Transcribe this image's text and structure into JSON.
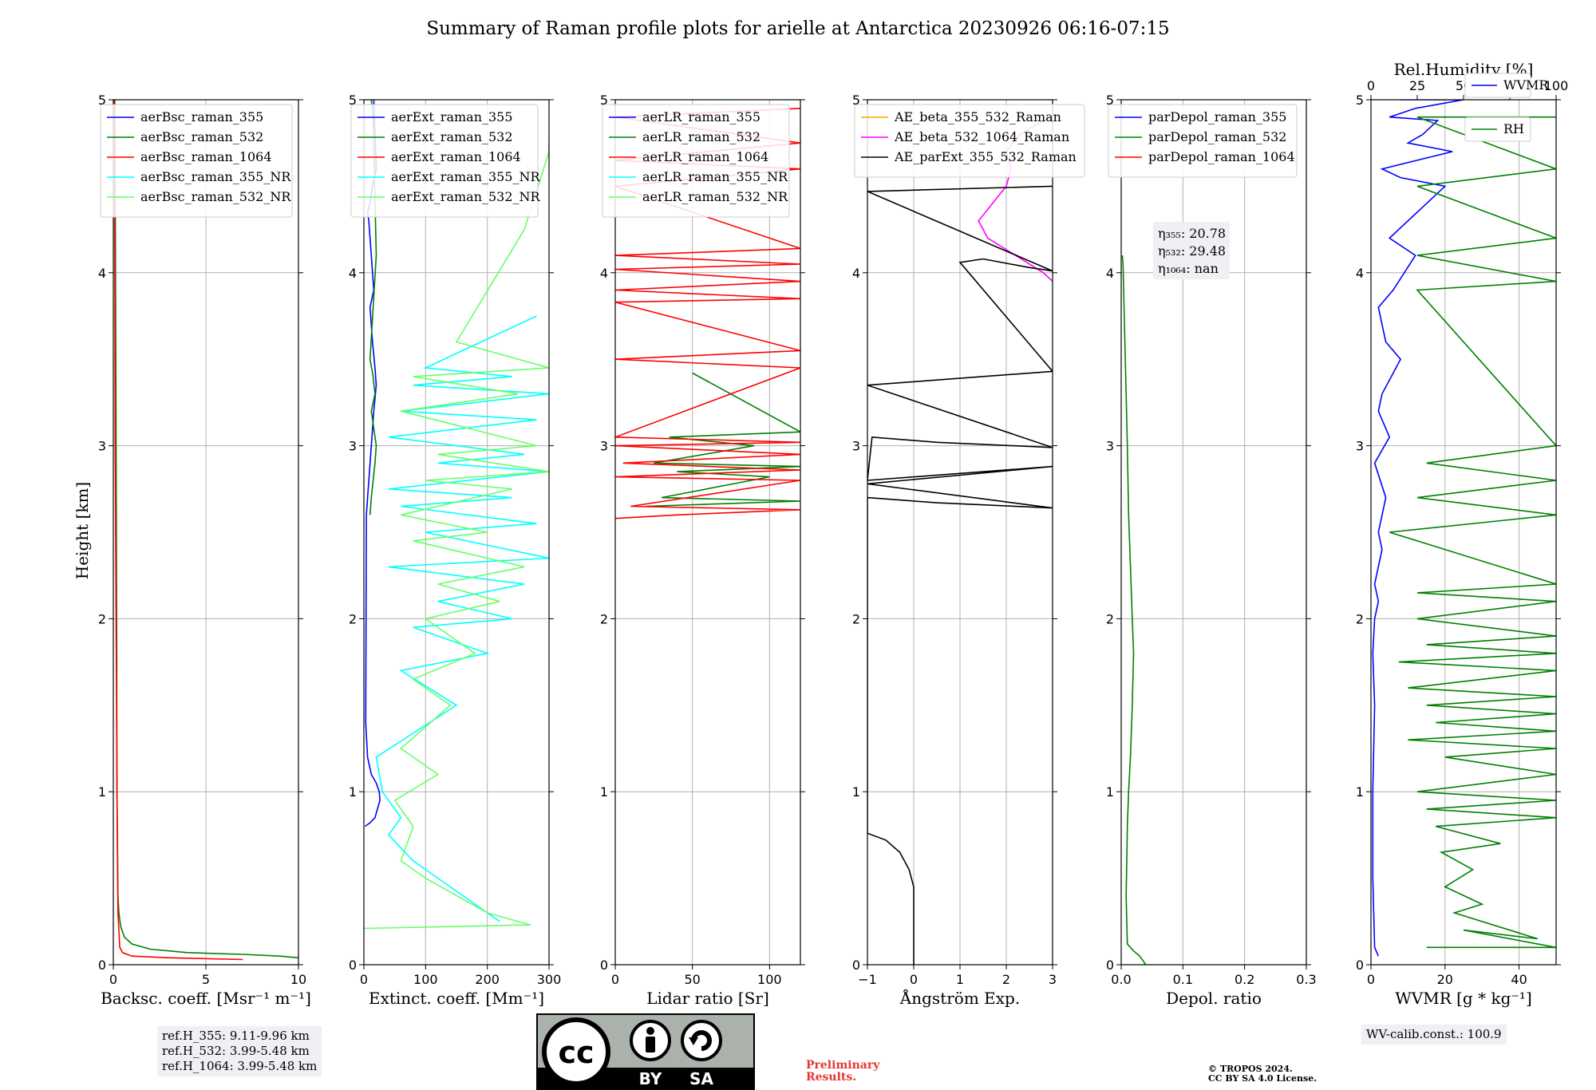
{
  "title": "Summary of Raman profile plots for arielle at Antarctica 20230926 06:16-07:15",
  "ylabel": "Height [km]",
  "colors": {
    "blue": "#0000ff",
    "green": "#008000",
    "red": "#ff0000",
    "cyan": "#00ffff",
    "lightgreen": "#66ff66",
    "orange": "#ffa500",
    "magenta": "#ff00ff",
    "black": "#000000"
  },
  "chart_data": [
    {
      "type": "line",
      "xlabel": "Backsc. coeff. [Msr⁻¹ m⁻¹]",
      "xlim": [
        0,
        10
      ],
      "ylim": [
        0,
        5
      ],
      "xticks": [
        0,
        5,
        10
      ],
      "yticks": [
        0,
        1,
        2,
        3,
        4,
        5
      ],
      "legend": [
        "aerBsc_raman_355",
        "aerBsc_raman_532",
        "aerBsc_raman_1064",
        "aerBsc_raman_355_NR",
        "aerBsc_raman_532_NR"
      ],
      "legend_colors": [
        "blue",
        "green",
        "red",
        "cyan",
        "lightgreen"
      ],
      "series": [
        {
          "name": "aerBsc_raman_532",
          "color": "green",
          "x": [
            10,
            9,
            7,
            4,
            2,
            1,
            0.6,
            0.4,
            0.3,
            0.25,
            0.2,
            0.18,
            0.15,
            0.12,
            0.1,
            0.08
          ],
          "y": [
            0.04,
            0.05,
            0.06,
            0.07,
            0.09,
            0.12,
            0.16,
            0.22,
            0.3,
            0.4,
            1,
            2,
            3,
            4,
            4.6,
            5
          ]
        },
        {
          "name": "aerBsc_raman_1064",
          "color": "red",
          "x": [
            7,
            3,
            1,
            0.5,
            0.35,
            0.25,
            0.2,
            0.15,
            0.1,
            0.08,
            0.05
          ],
          "y": [
            0.03,
            0.04,
            0.05,
            0.07,
            0.1,
            0.3,
            1,
            2,
            3,
            4,
            5
          ]
        }
      ]
    },
    {
      "type": "line",
      "xlabel": "Extinct. coeff. [Mm⁻¹]",
      "xlim": [
        0,
        300
      ],
      "ylim": [
        0,
        5
      ],
      "xticks": [
        0,
        100,
        200,
        300
      ],
      "yticks": [
        0,
        1,
        2,
        3,
        4,
        5
      ],
      "legend": [
        "aerExt_raman_355",
        "aerExt_raman_532",
        "aerExt_raman_1064",
        "aerExt_raman_355_NR",
        "aerExt_raman_532_NR"
      ],
      "legend_colors": [
        "blue",
        "green",
        "red",
        "cyan",
        "lightgreen"
      ],
      "series": [
        {
          "name": "aerExt_raman_355",
          "color": "blue",
          "x": [
            2,
            10,
            18,
            22,
            26,
            25,
            20,
            12,
            6,
            3,
            4,
            8,
            12,
            16,
            20,
            18,
            14,
            10,
            16,
            14,
            12,
            10,
            8,
            6,
            10,
            14,
            20,
            18,
            16
          ],
          "y": [
            0.8,
            0.82,
            0.85,
            0.9,
            0.95,
            1.0,
            1.05,
            1.1,
            1.2,
            1.4,
            2.6,
            2.8,
            3.0,
            3.2,
            3.35,
            3.45,
            3.6,
            3.8,
            3.9,
            4.0,
            4.1,
            4.2,
            4.3,
            4.35,
            4.4,
            4.5,
            4.6,
            4.8,
            5.0
          ]
        },
        {
          "name": "aerExt_raman_532",
          "color": "green",
          "x": [
            10,
            12,
            15,
            18,
            20,
            16,
            12,
            18,
            15,
            10,
            20,
            15,
            12
          ],
          "y": [
            2.6,
            2.7,
            2.8,
            2.9,
            3.0,
            3.1,
            3.2,
            3.3,
            3.4,
            3.5,
            4.1,
            4.9,
            5.0
          ]
        },
        {
          "name": "aerExt_raman_355_NR",
          "color": "cyan",
          "x": [
            220,
            180,
            120,
            80,
            40,
            60,
            30,
            20,
            150,
            60,
            200,
            80,
            240,
            120,
            260,
            40,
            300,
            100,
            280,
            60,
            240,
            40,
            300,
            120,
            260,
            40,
            280,
            60,
            300,
            80,
            240,
            100,
            280
          ],
          "y": [
            0.25,
            0.35,
            0.5,
            0.6,
            0.75,
            0.85,
            1.0,
            1.2,
            1.5,
            1.7,
            1.8,
            1.95,
            2.0,
            2.1,
            2.2,
            2.3,
            2.35,
            2.5,
            2.55,
            2.65,
            2.7,
            2.75,
            2.85,
            2.9,
            2.95,
            3.05,
            3.15,
            3.2,
            3.3,
            3.35,
            3.4,
            3.45,
            3.75
          ]
        },
        {
          "name": "aerExt_raman_532_NR",
          "color": "lightgreen",
          "x": [
            0,
            270,
            200,
            150,
            100,
            60,
            80,
            50,
            120,
            60,
            140,
            80,
            180,
            100,
            220,
            120,
            260,
            80,
            200,
            60,
            240,
            100,
            300,
            120,
            280,
            60,
            250,
            80,
            300,
            150,
            260,
            300,
            300
          ],
          "y": [
            0.21,
            0.23,
            0.3,
            0.4,
            0.5,
            0.6,
            0.8,
            0.95,
            1.1,
            1.25,
            1.5,
            1.65,
            1.8,
            2.0,
            2.1,
            2.2,
            2.3,
            2.45,
            2.5,
            2.6,
            2.75,
            2.8,
            2.85,
            2.95,
            3.0,
            3.2,
            3.3,
            3.4,
            3.45,
            3.6,
            4.25,
            4.7,
            4.75
          ]
        }
      ]
    },
    {
      "type": "line",
      "xlabel": "Lidar ratio [Sr]",
      "xlim": [
        0,
        120
      ],
      "ylim": [
        0,
        5
      ],
      "xticks": [
        0,
        50,
        100
      ],
      "yticks": [
        0,
        1,
        2,
        3,
        4,
        5
      ],
      "legend": [
        "aerLR_raman_355",
        "aerLR_raman_532",
        "aerLR_raman_1064",
        "aerLR_raman_355_NR",
        "aerLR_raman_532_NR"
      ],
      "legend_colors": [
        "blue",
        "green",
        "red",
        "cyan",
        "lightgreen"
      ],
      "series": [
        {
          "name": "aerLR_raman_532",
          "color": "green",
          "x": [
            20,
            120,
            30,
            100,
            40,
            120,
            25,
            90,
            35,
            120,
            50
          ],
          "y": [
            2.65,
            2.68,
            2.7,
            2.82,
            2.85,
            2.88,
            2.9,
            3.0,
            3.05,
            3.08,
            3.42
          ]
        },
        {
          "name": "aerLR_raman_1064",
          "color": "red",
          "x": [
            0,
            40,
            120,
            10,
            120,
            0,
            120,
            5,
            120,
            0,
            120,
            0,
            120,
            0,
            120,
            0,
            120,
            0,
            120,
            0,
            120,
            0,
            120,
            0,
            120,
            0,
            120,
            0,
            120
          ],
          "y": [
            2.58,
            2.6,
            2.63,
            2.65,
            2.8,
            2.82,
            2.86,
            2.9,
            2.95,
            3.0,
            3.02,
            3.05,
            3.45,
            3.5,
            3.55,
            3.83,
            3.85,
            3.9,
            3.95,
            4.02,
            4.05,
            4.1,
            4.14,
            4.5,
            4.6,
            4.65,
            4.75,
            4.9,
            4.95
          ]
        }
      ]
    },
    {
      "type": "line",
      "xlabel": "Ångström Exp.",
      "xlim": [
        -1,
        3
      ],
      "ylim": [
        0,
        5
      ],
      "xticks": [
        -1,
        0,
        1,
        2,
        3
      ],
      "yticks": [
        0,
        1,
        2,
        3,
        4,
        5
      ],
      "legend": [
        "AE_beta_355_532_Raman",
        "AE_beta_532_1064_Raman",
        "AE_parExt_355_532_Raman"
      ],
      "legend_colors": [
        "orange",
        "magenta",
        "black"
      ],
      "series": [
        {
          "name": "AE_beta_532_1064_Raman",
          "color": "magenta",
          "x": [
            3,
            2.8,
            2.2,
            1.6,
            1.4,
            1.7,
            2.0,
            2.1,
            2.0,
            2.3,
            2.6,
            3.0
          ],
          "y": [
            3.95,
            4.0,
            4.1,
            4.2,
            4.3,
            4.4,
            4.5,
            4.6,
            4.7,
            4.8,
            4.85,
            4.9
          ]
        },
        {
          "name": "AE_parExt_355_532_Raman",
          "color": "black",
          "x": [
            0,
            0,
            -0.05,
            -0.1,
            -0.3,
            -0.6,
            -1,
            -1,
            0.5,
            3,
            -1,
            1,
            3,
            -1,
            -0.9,
            0.5,
            3,
            -1,
            0.5,
            3,
            1,
            1.5,
            2.5,
            3,
            -1,
            3
          ],
          "y": [
            0,
            0.45,
            0.5,
            0.55,
            0.65,
            0.72,
            0.76,
            2.7,
            2.67,
            2.64,
            2.78,
            2.83,
            2.88,
            2.8,
            3.05,
            3.02,
            2.99,
            3.35,
            3.38,
            3.43,
            4.06,
            4.08,
            4.03,
            4.01,
            4.47,
            4.5
          ]
        }
      ]
    },
    {
      "type": "line",
      "xlabel": "Depol. ratio",
      "xlim": [
        0,
        0.3
      ],
      "ylim": [
        0,
        5
      ],
      "xticks": [
        0.0,
        0.1,
        0.2,
        0.3
      ],
      "yticks": [
        0,
        1,
        2,
        3,
        4,
        5
      ],
      "tick_labels": [
        "0.0",
        "0.1",
        "0.2",
        "0.3"
      ],
      "legend": [
        "parDepol_raman_355",
        "parDepol_raman_532",
        "parDepol_raman_1064"
      ],
      "legend_colors": [
        "blue",
        "green",
        "red"
      ],
      "series": [
        {
          "name": "parDepol_raman_532",
          "color": "green",
          "x": [
            0.04,
            0.03,
            0.02,
            0.01,
            0.008,
            0.009,
            0.01,
            0.012,
            0.015,
            0.018,
            0.02,
            0.018,
            0.015,
            0.012,
            0.01,
            0.008,
            0.006,
            0.004,
            0.003,
            0.002
          ],
          "y": [
            0.0,
            0.05,
            0.08,
            0.12,
            0.4,
            0.6,
            0.8,
            1.0,
            1.2,
            1.5,
            1.8,
            2.0,
            2.3,
            2.6,
            3.0,
            3.3,
            3.6,
            3.9,
            4.05,
            4.1
          ]
        }
      ],
      "annotation": [
        "η₃₅₅: 20.78",
        "η₅₃₂: 29.48",
        "η₁₀₆₄: nan"
      ]
    },
    {
      "type": "line",
      "xlabel": "WVMR [g * kg⁻¹]",
      "x2label": "Rel.Humidity [%]",
      "xlim": [
        0,
        50
      ],
      "x2lim": [
        0,
        100
      ],
      "ylim": [
        0,
        5
      ],
      "xticks": [
        0,
        20,
        40
      ],
      "x2ticks": [
        0,
        25,
        50,
        75,
        100
      ],
      "yticks": [
        0,
        1,
        2,
        3,
        4,
        5
      ],
      "legend": [
        "WVMR",
        "RH"
      ],
      "legend_colors": [
        "blue",
        "green"
      ],
      "series": [
        {
          "name": "WVMR",
          "color": "blue",
          "x": [
            2,
            1,
            0.5,
            0.5,
            1,
            0.5,
            1,
            2,
            1,
            3,
            2,
            4,
            1,
            5,
            2,
            3,
            8,
            4,
            2,
            6,
            12,
            5,
            15,
            20,
            8,
            3,
            22,
            10,
            14,
            18,
            5,
            12,
            25,
            8
          ],
          "y": [
            0.05,
            0.1,
            0.5,
            1.0,
            1.5,
            1.8,
            2.0,
            2.1,
            2.2,
            2.4,
            2.5,
            2.7,
            2.9,
            3.05,
            3.2,
            3.3,
            3.5,
            3.6,
            3.8,
            3.9,
            4.1,
            4.2,
            4.4,
            4.5,
            4.55,
            4.6,
            4.7,
            4.75,
            4.8,
            4.88,
            4.9,
            4.95,
            5.0,
            5.0
          ]
        },
        {
          "name": "RH",
          "color": "green",
          "x": [
            30,
            100,
            50,
            90,
            45,
            60,
            40,
            55,
            38,
            70,
            35,
            100,
            30,
            100,
            25,
            100,
            40,
            100,
            20,
            100,
            35,
            100,
            30,
            100,
            20,
            100,
            15,
            100,
            30,
            100,
            25,
            100,
            25,
            100,
            10,
            100,
            25,
            100,
            30,
            100,
            25,
            100,
            25,
            100,
            25,
            100,
            25,
            100
          ],
          "y": [
            0.1,
            0.1,
            0.2,
            0.15,
            0.3,
            0.35,
            0.45,
            0.55,
            0.65,
            0.7,
            0.8,
            0.85,
            0.9,
            0.95,
            1.0,
            1.1,
            1.2,
            1.25,
            1.3,
            1.35,
            1.4,
            1.45,
            1.5,
            1.55,
            1.6,
            1.7,
            1.75,
            1.8,
            1.85,
            1.9,
            2.0,
            2.1,
            2.15,
            2.2,
            2.5,
            2.6,
            2.7,
            2.8,
            2.9,
            3.0,
            3.9,
            3.95,
            4.1,
            4.2,
            4.5,
            4.6,
            4.9,
            4.9
          ]
        }
      ]
    }
  ],
  "refh_box": [
    "ref.H_355: 9.11-9.96 km",
    "ref.H_532: 3.99-5.48 km",
    "ref.H_1064: 3.99-5.48 km"
  ],
  "wv_box": "WV-calib.const.: 100.9",
  "preliminary": [
    "Preliminary",
    "Results."
  ],
  "copyright": [
    "© TROPOS 2024.",
    "CC BY SA 4.0 License."
  ],
  "license_logo": {
    "cc": "cc",
    "by": "BY",
    "sa": "SA"
  }
}
